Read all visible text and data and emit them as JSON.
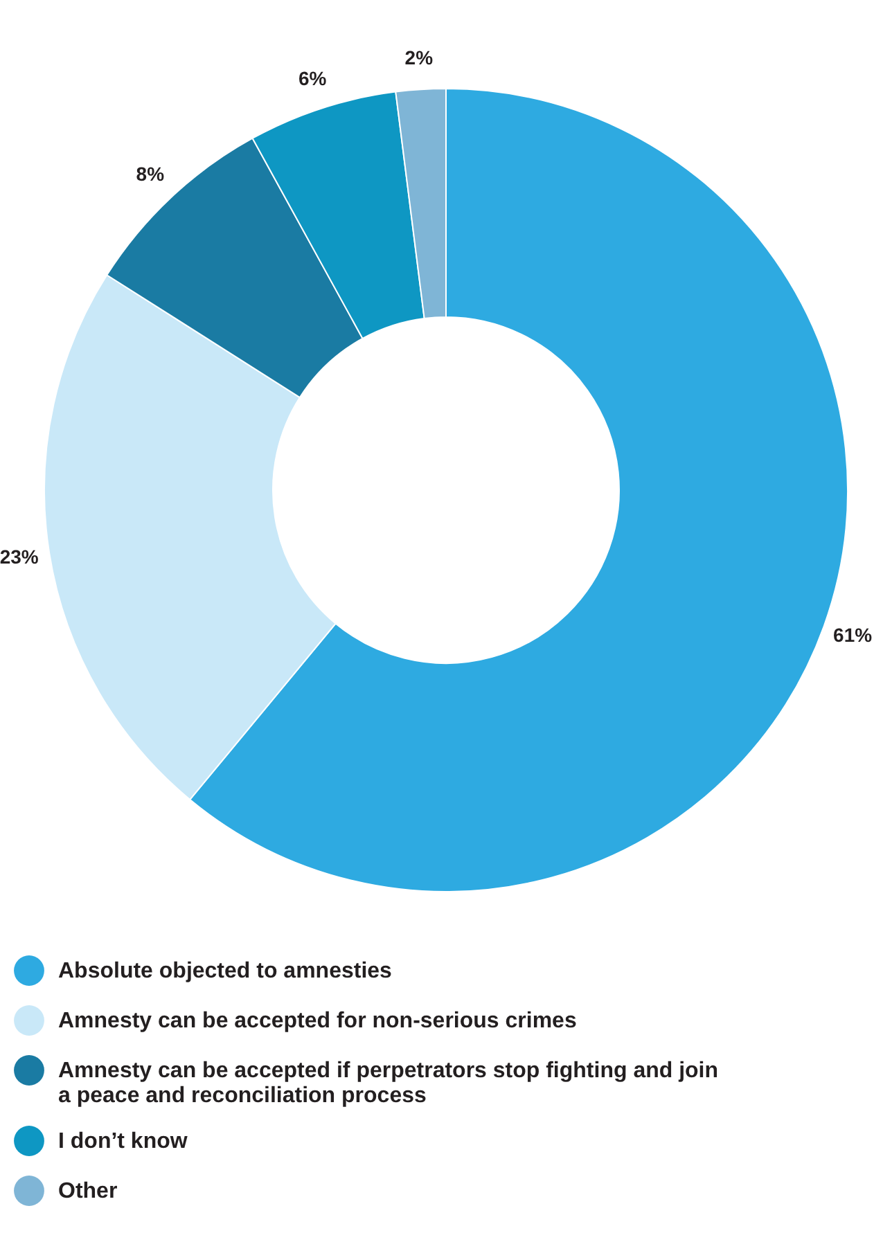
{
  "chart_data": {
    "type": "donut",
    "categories": [
      "Absolute objected to amnesties",
      "Amnesty can be accepted for non-serious crimes",
      "Amnesty can be accepted if perpetrators stop fighting and join a peace and reconciliation process",
      "I don’t know",
      "Other"
    ],
    "values": [
      61,
      23,
      8,
      6,
      2
    ],
    "colors": [
      "#2eaae1",
      "#c9e8f8",
      "#1a7ba3",
      "#0e97c3",
      "#7fb5d6"
    ],
    "value_labels": [
      "61%",
      "23%",
      "8%",
      "6%",
      "2%"
    ],
    "legend": "bottom"
  }
}
